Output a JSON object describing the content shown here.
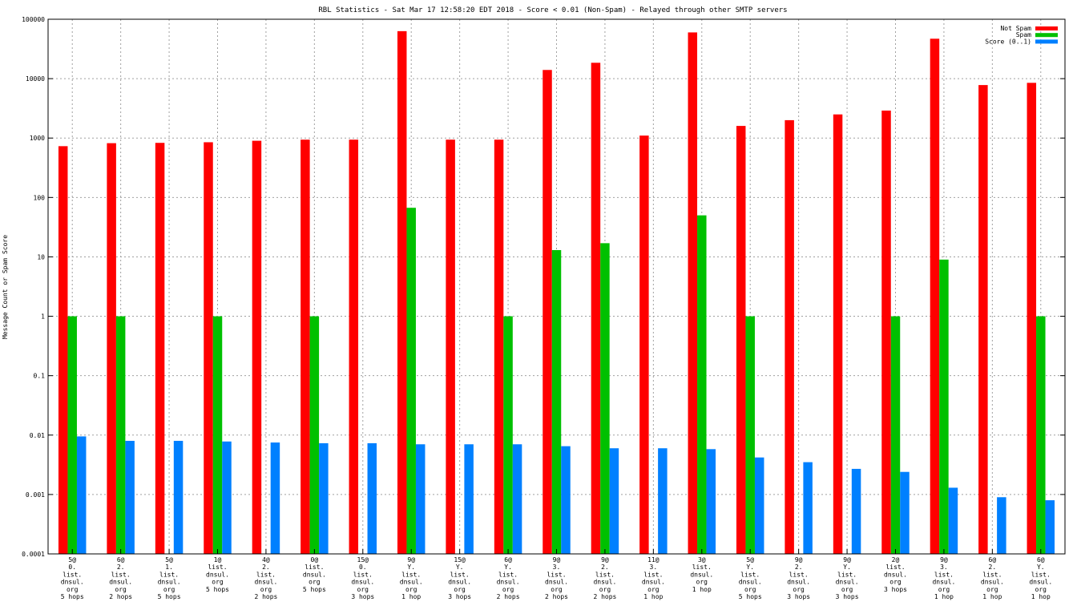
{
  "chart_data": {
    "type": "bar",
    "title": "RBL Statistics - Sat Mar 17 12:58:20 EDT 2018 - Score < 0.01 (Non-Spam) - Relayed through other SMTP servers",
    "ylabel": "Message Count or Spam Score",
    "xlabel": "",
    "yscale": "log",
    "ylim": [
      0.0001,
      100000
    ],
    "yticks": [
      {
        "value": 0.0001,
        "label": "0.0001"
      },
      {
        "value": 0.001,
        "label": "0.001"
      },
      {
        "value": 0.01,
        "label": "0.01"
      },
      {
        "value": 0.1,
        "label": "0.1"
      },
      {
        "value": 1,
        "label": "1"
      },
      {
        "value": 10,
        "label": "10"
      },
      {
        "value": 100,
        "label": "100"
      },
      {
        "value": 1000,
        "label": "1000"
      },
      {
        "value": 10000,
        "label": "10000"
      },
      {
        "value": 100000,
        "label": "100000"
      }
    ],
    "grid": true,
    "legend_position": "top-right",
    "categories": [
      [
        "5@",
        "0.",
        "list.",
        "dnsul.",
        "org",
        "5 hops"
      ],
      [
        "6@",
        "2.",
        "list.",
        "dnsul.",
        "org",
        "2 hops"
      ],
      [
        "5@",
        "1.",
        "list.",
        "dnsul.",
        "org",
        "5 hops"
      ],
      [
        "1@",
        "list.",
        "dnsul.",
        "org",
        "5 hops"
      ],
      [
        "4@",
        "2.",
        "list.",
        "dnsul.",
        "org",
        "2 hops"
      ],
      [
        "0@",
        "list.",
        "dnsul.",
        "org",
        "5 hops"
      ],
      [
        "15@",
        "0.",
        "list.",
        "dnsul.",
        "org",
        "3 hops"
      ],
      [
        "9@",
        "Y.",
        "list.",
        "dnsul.",
        "org",
        "1 hop"
      ],
      [
        "15@",
        "Y.",
        "list.",
        "dnsul.",
        "org",
        "3 hops"
      ],
      [
        "6@",
        "Y.",
        "list.",
        "dnsul.",
        "org",
        "2 hops"
      ],
      [
        "9@",
        "3.",
        "list.",
        "dnsul.",
        "org",
        "2 hops"
      ],
      [
        "9@",
        "2.",
        "list.",
        "dnsul.",
        "org",
        "2 hops"
      ],
      [
        "11@",
        "3.",
        "list.",
        "dnsul.",
        "org",
        "1 hop"
      ],
      [
        "3@",
        "list.",
        "dnsul.",
        "org",
        "1 hop"
      ],
      [
        "5@",
        "Y.",
        "list.",
        "dnsul.",
        "org",
        "5 hops"
      ],
      [
        "9@",
        "2.",
        "list.",
        "dnsul.",
        "org",
        "3 hops"
      ],
      [
        "9@",
        "Y.",
        "list.",
        "dnsul.",
        "org",
        "3 hops"
      ],
      [
        "2@",
        "list.",
        "dnsul.",
        "org",
        "3 hops"
      ],
      [
        "9@",
        "3.",
        "list.",
        "dnsul.",
        "org",
        "1 hop"
      ],
      [
        "6@",
        "2.",
        "list.",
        "dnsul.",
        "org",
        "1 hop"
      ],
      [
        "6@",
        "Y.",
        "list.",
        "dnsul.",
        "org",
        "1 hop"
      ]
    ],
    "series": [
      {
        "name": "Not Spam",
        "color": "#ff0000",
        "values": [
          730,
          820,
          830,
          850,
          900,
          940,
          940,
          63000,
          940,
          940,
          14000,
          18500,
          1100,
          60000,
          1600,
          2000,
          2500,
          2900,
          47000,
          7800,
          8500
        ]
      },
      {
        "name": "Spam",
        "color": "#00c000",
        "values": [
          1,
          1,
          null,
          1,
          null,
          1,
          null,
          67,
          null,
          1,
          13,
          17,
          null,
          50,
          1,
          null,
          null,
          1,
          9,
          null,
          1
        ]
      },
      {
        "name": "Score (0..1)",
        "color": "#0080ff",
        "values": [
          0.0095,
          0.008,
          0.008,
          0.0078,
          0.0075,
          0.0073,
          0.0073,
          0.007,
          0.007,
          0.007,
          0.0065,
          0.006,
          0.006,
          0.0058,
          0.0042,
          0.0035,
          0.0027,
          0.0024,
          0.0013,
          0.0009,
          0.0008
        ]
      }
    ]
  }
}
